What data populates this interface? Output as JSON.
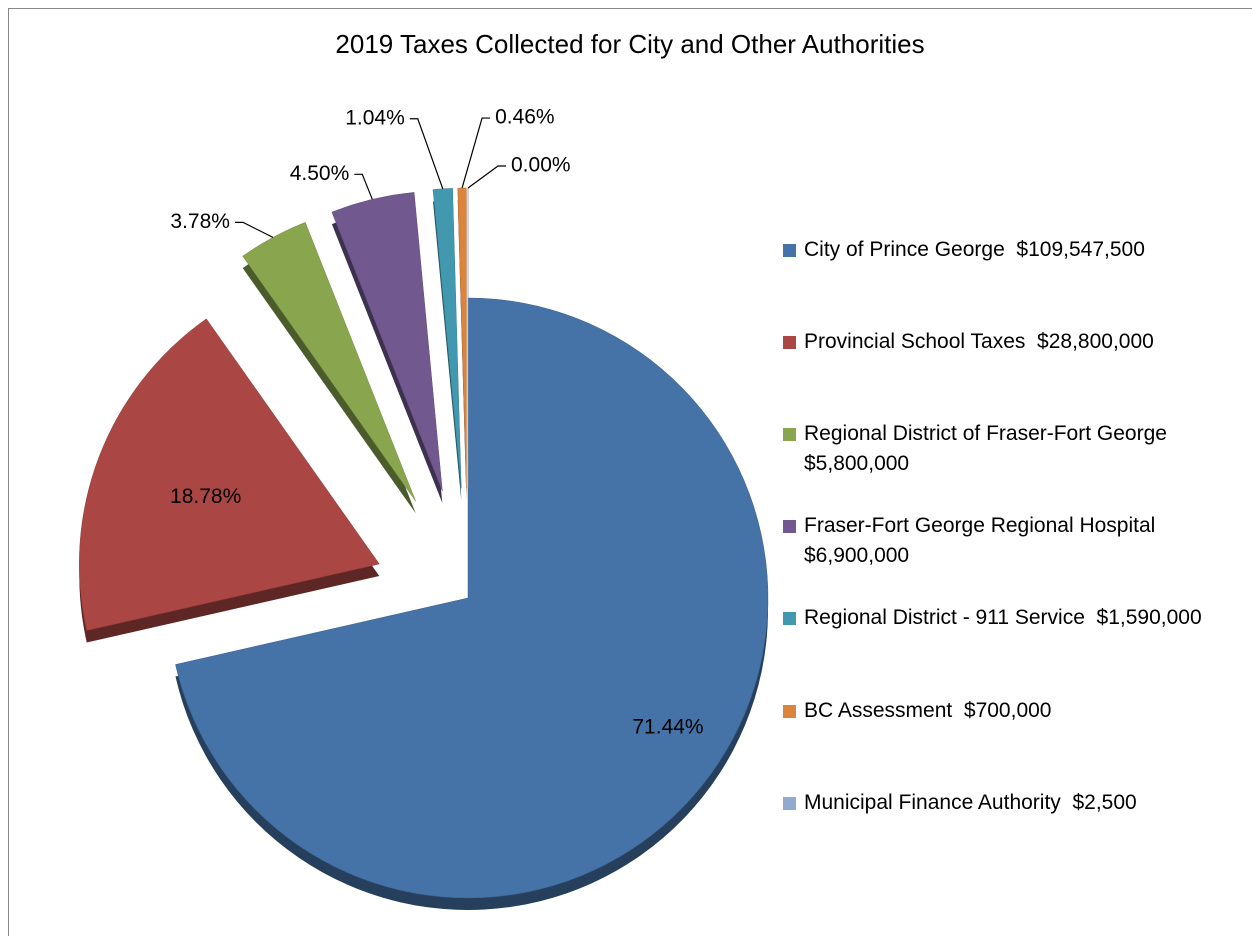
{
  "chart_data": {
    "type": "pie",
    "title": "2019 Taxes Collected for City and Other Authorities",
    "categories": [
      "City of Prince George  $109,547,500",
      "Provincial School Taxes  $28,800,000",
      "Regional District of Fraser-Fort George  $5,800,000",
      "Fraser-Fort George Regional Hospital  $6,900,000",
      "Regional District - 911 Service  $1,590,000",
      "BC Assessment  $700,000",
      "Municipal Finance Authority  $2,500"
    ],
    "values": [
      71.44,
      18.78,
      3.78,
      4.5,
      1.04,
      0.46,
      0.0
    ],
    "value_labels": [
      "71.44%",
      "18.78%",
      "3.78%",
      "4.50%",
      "1.04%",
      "0.46%",
      "0.00%"
    ],
    "colors": [
      "#4572a7",
      "#aa4643",
      "#89a54e",
      "#71588f",
      "#4198af",
      "#db843d",
      "#93a9cf"
    ],
    "legend": "right"
  }
}
